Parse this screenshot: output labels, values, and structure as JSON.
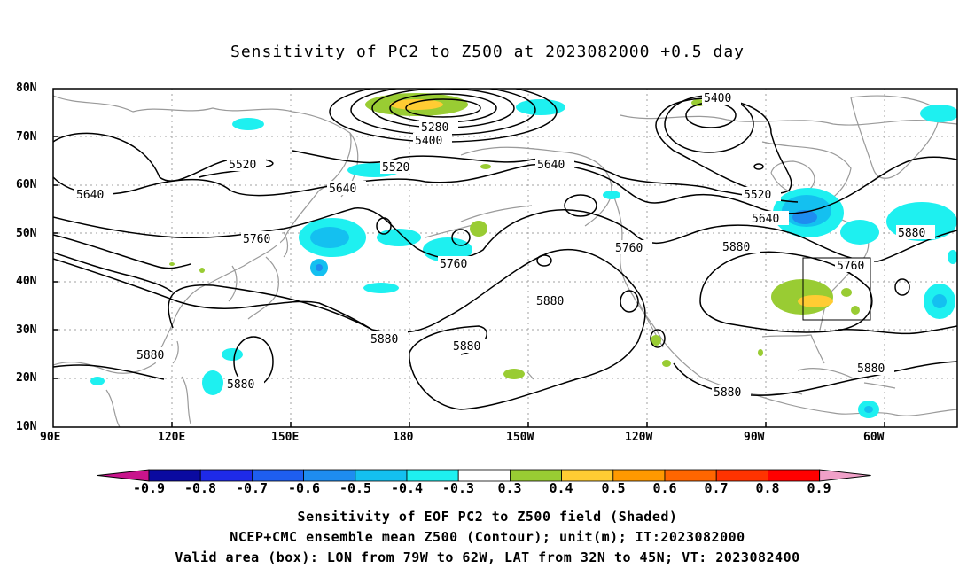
{
  "title": "Sensitivity of PC2 to Z500 at 2023082000 +0.5 day",
  "lat_labels": [
    "80N",
    "70N",
    "60N",
    "50N",
    "40N",
    "30N",
    "20N",
    "10N"
  ],
  "lon_labels": [
    "90E",
    "120E",
    "150E",
    "180",
    "150W",
    "120W",
    "90W",
    "60W"
  ],
  "contour_labels": [
    {
      "text": "5400"
    },
    {
      "text": "5280"
    },
    {
      "text": "5400"
    },
    {
      "text": "5520"
    },
    {
      "text": "5520"
    },
    {
      "text": "5640"
    },
    {
      "text": "5640"
    },
    {
      "text": "5640"
    },
    {
      "text": "5520"
    },
    {
      "text": "5640"
    },
    {
      "text": "5760"
    },
    {
      "text": "5760"
    },
    {
      "text": "5760"
    },
    {
      "text": "5880"
    },
    {
      "text": "5880"
    },
    {
      "text": "5760"
    },
    {
      "text": "5880"
    },
    {
      "text": "5880"
    },
    {
      "text": "5880"
    },
    {
      "text": "5880"
    },
    {
      "text": "5880"
    },
    {
      "text": "5880"
    },
    {
      "text": "5880"
    }
  ],
  "colorbar": {
    "labels": [
      "-0.9",
      "-0.8",
      "-0.7",
      "-0.6",
      "-0.5",
      "-0.4",
      "-0.3",
      "0.3",
      "0.4",
      "0.5",
      "0.6",
      "0.7",
      "0.8",
      "0.9"
    ],
    "colors": [
      "#0a0aa0",
      "#1e2ae8",
      "#1e5ef0",
      "#1e8cf0",
      "#14c0f0",
      "#1ef0f0",
      "#ffffff",
      "#99cc33",
      "#ffcc33",
      "#ff9900",
      "#ff6600",
      "#ff3300",
      "#ff0000"
    ],
    "left_arrow_color": "#c8148c",
    "right_arrow_color": "#f0a0c8"
  },
  "captions": [
    "Sensitivity of EOF PC2 to Z500 field (Shaded)",
    "NCEP+CMC ensemble mean Z500 (Contour); unit(m); IT:2023082000",
    "Valid area (box): LON from 79W to 62W, LAT from 32N to 45N; VT: 2023082400"
  ]
}
